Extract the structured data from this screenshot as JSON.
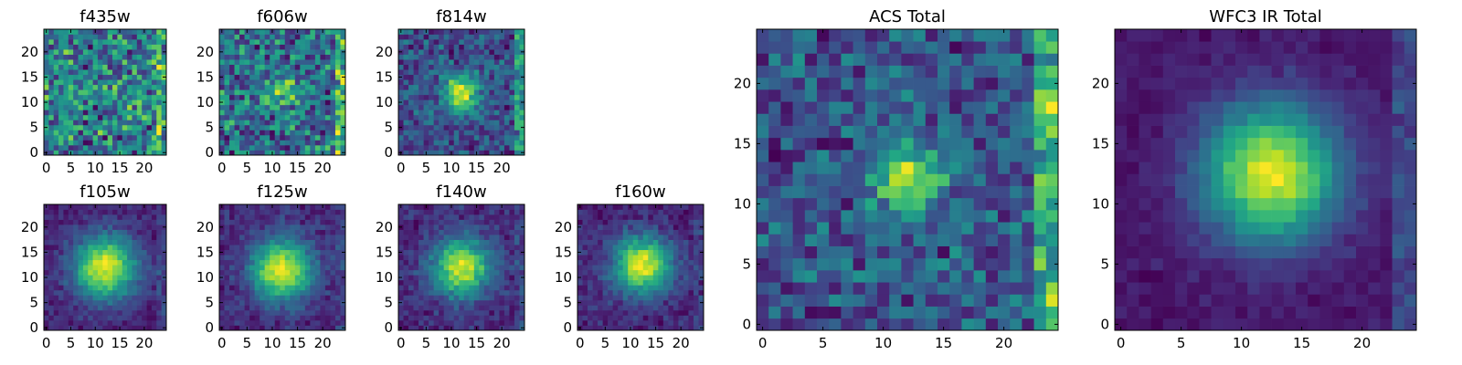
{
  "chart_data": [
    {
      "type": "heatmap",
      "title": "f435w",
      "x_ticks": [
        0,
        5,
        10,
        15,
        20
      ],
      "y_ticks": [
        0,
        5,
        10,
        15,
        20
      ],
      "xlim": [
        0,
        24
      ],
      "ylim": [
        0,
        24
      ],
      "grid_size": 25,
      "colormap": "viridis",
      "source_center": [
        12.5,
        12.5
      ],
      "source_sigma": 1.8,
      "source_amplitude": 0.25,
      "noise_level": 0.8,
      "edge_bright_right": 0.35,
      "seed": 11
    },
    {
      "type": "heatmap",
      "title": "f606w",
      "x_ticks": [
        0,
        5,
        10,
        15,
        20
      ],
      "y_ticks": [
        0,
        5,
        10,
        15,
        20
      ],
      "xlim": [
        0,
        24
      ],
      "ylim": [
        0,
        24
      ],
      "grid_size": 25,
      "colormap": "viridis",
      "source_center": [
        12,
        12
      ],
      "source_sigma": 2,
      "source_amplitude": 0.4,
      "noise_level": 0.6,
      "edge_bright_right": 0.45,
      "seed": 22
    },
    {
      "type": "heatmap",
      "title": "f814w",
      "x_ticks": [
        0,
        5,
        10,
        15,
        20
      ],
      "y_ticks": [
        0,
        5,
        10,
        15,
        20
      ],
      "xlim": [
        0,
        24
      ],
      "ylim": [
        0,
        24
      ],
      "grid_size": 25,
      "colormap": "viridis",
      "source_center": [
        12,
        12
      ],
      "source_sigma": 2.4,
      "source_amplitude": 0.85,
      "noise_level": 0.4,
      "edge_bright_right": 0.5,
      "seed": 33
    },
    {
      "type": "heatmap",
      "title": "f105w",
      "x_ticks": [
        0,
        5,
        10,
        15,
        20
      ],
      "y_ticks": [
        0,
        5,
        10,
        15,
        20
      ],
      "xlim": [
        0,
        24
      ],
      "ylim": [
        0,
        24
      ],
      "grid_size": 25,
      "colormap": "viridis",
      "source_center": [
        12,
        12
      ],
      "source_sigma": 4.5,
      "source_amplitude": 1,
      "noise_level": 0.18,
      "edge_bright_right": 0.15,
      "seed": 44
    },
    {
      "type": "heatmap",
      "title": "f125w",
      "x_ticks": [
        0,
        5,
        10,
        15,
        20
      ],
      "y_ticks": [
        0,
        5,
        10,
        15,
        20
      ],
      "xlim": [
        0,
        24
      ],
      "ylim": [
        0,
        24
      ],
      "grid_size": 25,
      "colormap": "viridis",
      "source_center": [
        12,
        11.5
      ],
      "source_sigma": 4.2,
      "source_amplitude": 1,
      "noise_level": 0.2,
      "edge_bright_right": 0.15,
      "seed": 55
    },
    {
      "type": "heatmap",
      "title": "f140w",
      "x_ticks": [
        0,
        5,
        10,
        15,
        20
      ],
      "y_ticks": [
        0,
        5,
        10,
        15,
        20
      ],
      "xlim": [
        0,
        24
      ],
      "ylim": [
        0,
        24
      ],
      "grid_size": 25,
      "colormap": "viridis",
      "source_center": [
        12,
        12
      ],
      "source_sigma": 4,
      "source_amplitude": 1,
      "noise_level": 0.22,
      "edge_bright_right": 0.15,
      "seed": 66
    },
    {
      "type": "heatmap",
      "title": "f160w",
      "x_ticks": [
        0,
        5,
        10,
        15,
        20
      ],
      "y_ticks": [
        0,
        5,
        10,
        15,
        20
      ],
      "xlim": [
        0,
        24
      ],
      "ylim": [
        0,
        24
      ],
      "grid_size": 25,
      "colormap": "viridis",
      "source_center": [
        12.5,
        12.5
      ],
      "source_sigma": 4,
      "source_amplitude": 1,
      "noise_level": 0.2,
      "edge_bright_right": 0.12,
      "seed": 77
    },
    {
      "type": "heatmap",
      "title": "ACS Total",
      "x_ticks": [
        0,
        5,
        10,
        15,
        20
      ],
      "y_ticks": [
        0,
        5,
        10,
        15,
        20
      ],
      "xlim": [
        0,
        24
      ],
      "ylim": [
        0,
        24
      ],
      "grid_size": 25,
      "colormap": "viridis",
      "source_center": [
        12,
        12
      ],
      "source_sigma": 2,
      "source_amplitude": 0.75,
      "noise_level": 0.4,
      "edge_bright_right": 0.6,
      "seed": 88
    },
    {
      "type": "heatmap",
      "title": "WFC3 IR Total",
      "x_ticks": [
        0,
        5,
        10,
        15,
        20
      ],
      "y_ticks": [
        0,
        5,
        10,
        15,
        20
      ],
      "xlim": [
        0,
        24
      ],
      "ylim": [
        0,
        24
      ],
      "grid_size": 25,
      "colormap": "viridis",
      "source_center": [
        12.5,
        12.5
      ],
      "source_sigma": 4,
      "source_amplitude": 1,
      "noise_level": 0.1,
      "edge_bright_right": 0.25,
      "seed": 99
    }
  ]
}
